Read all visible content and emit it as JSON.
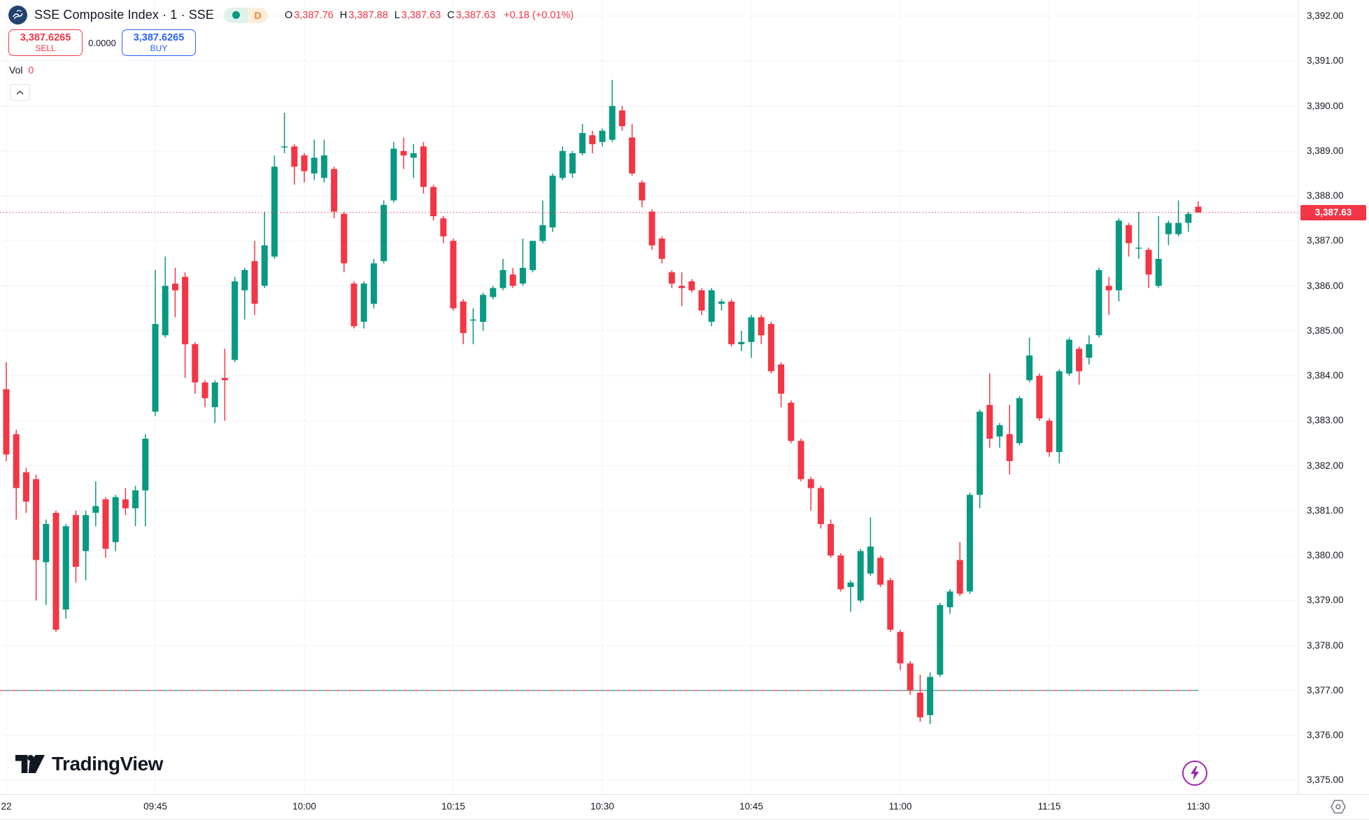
{
  "header": {
    "symbol_title": "SSE Composite Index · 1 · SSE",
    "interval_badge": "D",
    "ohlc": [
      {
        "label": "O",
        "value": "3,387.76"
      },
      {
        "label": "H",
        "value": "3,387.88"
      },
      {
        "label": "L",
        "value": "3,387.63"
      },
      {
        "label": "C",
        "value": "3,387.63"
      }
    ],
    "change": "+0.18 (+0.01%)"
  },
  "trade_panel": {
    "sell_price": "3,387.6265",
    "sell_label": "SELL",
    "spread": "0.0000",
    "buy_price": "3,387.6265",
    "buy_label": "BUY"
  },
  "volume": {
    "label": "Vol",
    "value": "0"
  },
  "watermark": {
    "text": "TradingView"
  },
  "colors": {
    "up": "#089981",
    "down": "#f23645",
    "buy_blue": "#2962ff",
    "grid": "#f0f3fa",
    "axis_text": "#131722",
    "boost_purple": "#9c27b0",
    "icon_gray": "#787b86"
  },
  "chart_data": {
    "type": "candlestick",
    "title": "SSE Composite Index 1-minute",
    "interval_minutes": 1,
    "session_start": "09:30",
    "y_axis": {
      "min": 3375,
      "max": 3392,
      "step": 1,
      "labels": [
        "3,392.00",
        "3,391.00",
        "3,390.00",
        "3,389.00",
        "3,388.00",
        "3,387.00",
        "3,386.00",
        "3,385.00",
        "3,384.00",
        "3,383.00",
        "3,382.00",
        "3,381.00",
        "3,380.00",
        "3,379.00",
        "3,378.00",
        "3,377.00",
        "3,376.00",
        "3,375.00"
      ],
      "values": [
        3392,
        3391,
        3390,
        3389,
        3388,
        3387,
        3386,
        3385,
        3384,
        3383,
        3382,
        3381,
        3380,
        3379,
        3378,
        3377,
        3376,
        3375
      ]
    },
    "x_axis": {
      "ticks": [
        {
          "label": "22",
          "minute": 0
        },
        {
          "label": "09:45",
          "minute": 15
        },
        {
          "label": "10:00",
          "minute": 30
        },
        {
          "label": "10:15",
          "minute": 45
        },
        {
          "label": "10:30",
          "minute": 60
        },
        {
          "label": "10:45",
          "minute": 75
        },
        {
          "label": "11:00",
          "minute": 90
        },
        {
          "label": "11:15",
          "minute": 105
        },
        {
          "label": "11:30",
          "minute": 120
        }
      ]
    },
    "price_line": {
      "value": 3387.63,
      "label": "3,387.63"
    },
    "level_line": {
      "value": 3377.0
    },
    "legend_position": "top-left",
    "grid": true,
    "candles_ohlc": [
      [
        3383.7,
        3384.3,
        3382.1,
        3382.25
      ],
      [
        3382.7,
        3382.8,
        3380.8,
        3381.5
      ],
      [
        3381.85,
        3381.95,
        3380.95,
        3381.2
      ],
      [
        3381.7,
        3381.8,
        3379.0,
        3379.9
      ],
      [
        3379.85,
        3380.8,
        3378.9,
        3380.7
      ],
      [
        3380.95,
        3381.0,
        3378.3,
        3378.35
      ],
      [
        3378.8,
        3380.7,
        3378.6,
        3380.65
      ],
      [
        3380.9,
        3381.0,
        3379.4,
        3379.75
      ],
      [
        3380.1,
        3381.0,
        3379.45,
        3380.9
      ],
      [
        3380.95,
        3381.65,
        3380.65,
        3381.1
      ],
      [
        3381.25,
        3381.3,
        3379.95,
        3380.15
      ],
      [
        3380.3,
        3381.35,
        3380.1,
        3381.3
      ],
      [
        3381.25,
        3381.5,
        3380.9,
        3381.05
      ],
      [
        3381.05,
        3381.55,
        3380.65,
        3381.45
      ],
      [
        3381.45,
        3382.7,
        3380.65,
        3382.6
      ],
      [
        3383.2,
        3386.35,
        3383.1,
        3385.15
      ],
      [
        3384.9,
        3386.65,
        3384.85,
        3386.0
      ],
      [
        3386.05,
        3386.4,
        3385.3,
        3385.9
      ],
      [
        3386.2,
        3386.3,
        3383.95,
        3384.7
      ],
      [
        3384.7,
        3384.75,
        3383.6,
        3383.85
      ],
      [
        3383.85,
        3383.9,
        3383.3,
        3383.5
      ],
      [
        3383.3,
        3383.9,
        3382.95,
        3383.85
      ],
      [
        3383.95,
        3384.6,
        3383.0,
        3383.9
      ],
      [
        3384.35,
        3386.2,
        3384.3,
        3386.1
      ],
      [
        3385.9,
        3386.4,
        3385.25,
        3386.35
      ],
      [
        3386.55,
        3387.0,
        3385.35,
        3385.6
      ],
      [
        3386.0,
        3387.65,
        3385.95,
        3386.9
      ],
      [
        3386.65,
        3388.9,
        3386.6,
        3388.65
      ],
      [
        3389.1,
        3389.85,
        3388.95,
        3389.1
      ],
      [
        3389.1,
        3389.15,
        3388.25,
        3388.65
      ],
      [
        3388.9,
        3388.95,
        3388.3,
        3388.55
      ],
      [
        3388.5,
        3389.25,
        3388.35,
        3388.85
      ],
      [
        3388.4,
        3389.25,
        3388.3,
        3388.9
      ],
      [
        3388.6,
        3388.65,
        3387.5,
        3387.65
      ],
      [
        3387.6,
        3387.65,
        3386.3,
        3386.5
      ],
      [
        3386.05,
        3386.1,
        3385.05,
        3385.1
      ],
      [
        3385.2,
        3386.1,
        3385.05,
        3386.05
      ],
      [
        3385.6,
        3386.6,
        3385.5,
        3386.5
      ],
      [
        3386.55,
        3387.9,
        3386.5,
        3387.8
      ],
      [
        3387.9,
        3389.2,
        3387.85,
        3389.05
      ],
      [
        3389.0,
        3389.3,
        3388.6,
        3388.9
      ],
      [
        3388.85,
        3389.15,
        3388.4,
        3388.95
      ],
      [
        3389.1,
        3389.2,
        3388.05,
        3388.2
      ],
      [
        3388.2,
        3388.25,
        3387.45,
        3387.55
      ],
      [
        3387.5,
        3387.55,
        3386.95,
        3387.1
      ],
      [
        3387.0,
        3387.05,
        3385.45,
        3385.5
      ],
      [
        3385.65,
        3385.7,
        3384.7,
        3384.95
      ],
      [
        3385.25,
        3385.5,
        3384.7,
        3385.25
      ],
      [
        3385.2,
        3385.85,
        3385.0,
        3385.8
      ],
      [
        3385.75,
        3386.0,
        3385.7,
        3385.95
      ],
      [
        3385.95,
        3386.6,
        3385.9,
        3386.35
      ],
      [
        3386.25,
        3386.4,
        3385.95,
        3386.0
      ],
      [
        3386.05,
        3387.05,
        3386.0,
        3386.4
      ],
      [
        3386.35,
        3387.0,
        3386.3,
        3387.0
      ],
      [
        3387.0,
        3387.9,
        3386.95,
        3387.35
      ],
      [
        3387.3,
        3388.5,
        3387.2,
        3388.45
      ],
      [
        3388.4,
        3389.1,
        3388.35,
        3389.0
      ],
      [
        3388.5,
        3389.0,
        3388.4,
        3388.95
      ],
      [
        3388.95,
        3389.6,
        3388.9,
        3389.4
      ],
      [
        3389.35,
        3389.45,
        3388.95,
        3389.15
      ],
      [
        3389.2,
        3389.5,
        3389.1,
        3389.45
      ],
      [
        3389.25,
        3390.58,
        3389.2,
        3390.0
      ],
      [
        3389.9,
        3390.0,
        3389.45,
        3389.55
      ],
      [
        3389.3,
        3389.6,
        3388.45,
        3388.5
      ],
      [
        3388.3,
        3388.35,
        3387.75,
        3387.9
      ],
      [
        3387.65,
        3387.7,
        3386.8,
        3386.9
      ],
      [
        3387.05,
        3387.1,
        3386.5,
        3386.6
      ],
      [
        3386.3,
        3386.35,
        3385.95,
        3386.05
      ],
      [
        3386.0,
        3386.3,
        3385.55,
        3385.95
      ],
      [
        3386.1,
        3386.15,
        3385.85,
        3385.9
      ],
      [
        3385.9,
        3385.95,
        3385.35,
        3385.45
      ],
      [
        3385.2,
        3385.95,
        3385.1,
        3385.9
      ],
      [
        3385.6,
        3385.7,
        3385.45,
        3385.65
      ],
      [
        3385.65,
        3385.7,
        3384.65,
        3384.7
      ],
      [
        3384.7,
        3385.0,
        3384.55,
        3384.75
      ],
      [
        3384.75,
        3385.35,
        3384.4,
        3385.3
      ],
      [
        3385.3,
        3385.35,
        3384.7,
        3384.9
      ],
      [
        3385.15,
        3385.2,
        3384.05,
        3384.1
      ],
      [
        3384.25,
        3384.3,
        3383.3,
        3383.6
      ],
      [
        3383.4,
        3383.45,
        3382.5,
        3382.55
      ],
      [
        3382.55,
        3382.6,
        3381.65,
        3381.7
      ],
      [
        3381.7,
        3381.75,
        3381.0,
        3381.5
      ],
      [
        3381.5,
        3381.55,
        3380.6,
        3380.7
      ],
      [
        3380.7,
        3380.8,
        3379.95,
        3380.0
      ],
      [
        3380.0,
        3380.05,
        3379.2,
        3379.25
      ],
      [
        3379.3,
        3379.45,
        3378.75,
        3379.4
      ],
      [
        3379.0,
        3380.15,
        3378.95,
        3380.1
      ],
      [
        3379.6,
        3380.85,
        3379.55,
        3380.2
      ],
      [
        3379.95,
        3380.0,
        3379.3,
        3379.35
      ],
      [
        3379.45,
        3379.5,
        3378.3,
        3378.35
      ],
      [
        3378.3,
        3378.35,
        3377.45,
        3377.6
      ],
      [
        3377.6,
        3377.65,
        3376.9,
        3377.0
      ],
      [
        3376.95,
        3377.35,
        3376.3,
        3376.4
      ],
      [
        3376.45,
        3377.4,
        3376.25,
        3377.3
      ],
      [
        3377.35,
        3378.95,
        3377.3,
        3378.9
      ],
      [
        3378.85,
        3379.25,
        3378.7,
        3379.2
      ],
      [
        3379.9,
        3380.3,
        3379.1,
        3379.15
      ],
      [
        3379.2,
        3381.4,
        3379.15,
        3381.35
      ],
      [
        3381.35,
        3383.25,
        3381.05,
        3383.2
      ],
      [
        3383.35,
        3384.05,
        3382.4,
        3382.6
      ],
      [
        3382.65,
        3382.95,
        3382.4,
        3382.9
      ],
      [
        3382.7,
        3383.35,
        3381.8,
        3382.1
      ],
      [
        3382.5,
        3383.55,
        3382.45,
        3383.5
      ],
      [
        3383.9,
        3384.85,
        3383.85,
        3384.45
      ],
      [
        3384.0,
        3384.05,
        3383.0,
        3383.05
      ],
      [
        3383.0,
        3383.05,
        3382.2,
        3382.3
      ],
      [
        3382.3,
        3384.15,
        3382.05,
        3384.1
      ],
      [
        3384.05,
        3384.85,
        3384.0,
        3384.8
      ],
      [
        3384.6,
        3384.65,
        3383.8,
        3384.1
      ],
      [
        3384.4,
        3384.9,
        3384.25,
        3384.7
      ],
      [
        3384.9,
        3386.4,
        3384.85,
        3386.35
      ],
      [
        3386.0,
        3386.2,
        3385.35,
        3385.9
      ],
      [
        3385.9,
        3387.5,
        3385.65,
        3387.45
      ],
      [
        3387.35,
        3387.4,
        3386.65,
        3386.95
      ],
      [
        3386.85,
        3387.65,
        3386.6,
        3386.85
      ],
      [
        3386.8,
        3386.85,
        3385.95,
        3386.25
      ],
      [
        3386.0,
        3387.55,
        3385.95,
        3386.6
      ],
      [
        3387.15,
        3387.45,
        3386.9,
        3387.4
      ],
      [
        3387.15,
        3387.9,
        3387.1,
        3387.4
      ],
      [
        3387.4,
        3387.65,
        3387.2,
        3387.6
      ],
      [
        3387.76,
        3387.88,
        3387.63,
        3387.63
      ]
    ]
  }
}
